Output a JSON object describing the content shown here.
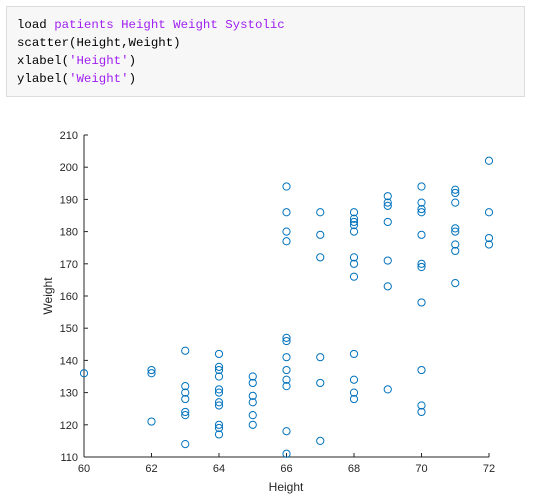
{
  "code": {
    "lines": [
      [
        {
          "t": "load ",
          "c": "plain"
        },
        {
          "t": "patients Height Weight Systolic",
          "c": "str"
        }
      ],
      [
        {
          "t": "scatter(Height,Weight)",
          "c": "plain"
        }
      ],
      [
        {
          "t": "xlabel(",
          "c": "plain"
        },
        {
          "t": "'Height'",
          "c": "str"
        },
        {
          "t": ")",
          "c": "plain"
        }
      ],
      [
        {
          "t": "ylabel(",
          "c": "plain"
        },
        {
          "t": "'Weight'",
          "c": "str"
        },
        {
          "t": ")",
          "c": "plain"
        }
      ]
    ]
  },
  "colors": {
    "marker": "#0072bd",
    "code_string": "#a020f0",
    "axis": "#262626"
  },
  "chart_data": {
    "type": "scatter",
    "xlabel": "Height",
    "ylabel": "Weight",
    "xlim": [
      60,
      72
    ],
    "ylim": [
      110,
      210
    ],
    "xticks": [
      60,
      62,
      64,
      66,
      68,
      70,
      72
    ],
    "yticks": [
      110,
      120,
      130,
      140,
      150,
      160,
      170,
      180,
      190,
      200,
      210
    ],
    "grid": false,
    "marker": "open-circle",
    "points": [
      [
        60,
        136
      ],
      [
        62,
        137
      ],
      [
        62,
        136
      ],
      [
        62,
        121
      ],
      [
        63,
        143
      ],
      [
        63,
        132
      ],
      [
        63,
        130
      ],
      [
        63,
        128
      ],
      [
        63,
        124
      ],
      [
        63,
        123
      ],
      [
        63,
        114
      ],
      [
        64,
        142
      ],
      [
        64,
        138
      ],
      [
        64,
        137
      ],
      [
        64,
        135
      ],
      [
        64,
        131
      ],
      [
        64,
        130
      ],
      [
        64,
        127
      ],
      [
        64,
        126
      ],
      [
        64,
        120
      ],
      [
        64,
        119
      ],
      [
        64,
        117
      ],
      [
        65,
        135
      ],
      [
        65,
        133
      ],
      [
        65,
        129
      ],
      [
        65,
        127
      ],
      [
        65,
        123
      ],
      [
        65,
        120
      ],
      [
        66,
        194
      ],
      [
        66,
        186
      ],
      [
        66,
        180
      ],
      [
        66,
        177
      ],
      [
        66,
        147
      ],
      [
        66,
        146
      ],
      [
        66,
        141
      ],
      [
        66,
        137
      ],
      [
        66,
        134
      ],
      [
        66,
        132
      ],
      [
        66,
        118
      ],
      [
        66,
        111
      ],
      [
        67,
        186
      ],
      [
        67,
        179
      ],
      [
        67,
        172
      ],
      [
        67,
        141
      ],
      [
        67,
        133
      ],
      [
        67,
        115
      ],
      [
        68,
        186
      ],
      [
        68,
        184
      ],
      [
        68,
        183
      ],
      [
        68,
        182
      ],
      [
        68,
        180
      ],
      [
        68,
        172
      ],
      [
        68,
        170
      ],
      [
        68,
        166
      ],
      [
        68,
        142
      ],
      [
        68,
        134
      ],
      [
        68,
        130
      ],
      [
        68,
        128
      ],
      [
        69,
        191
      ],
      [
        69,
        189
      ],
      [
        69,
        188
      ],
      [
        69,
        183
      ],
      [
        69,
        171
      ],
      [
        69,
        163
      ],
      [
        69,
        131
      ],
      [
        70,
        194
      ],
      [
        70,
        189
      ],
      [
        70,
        187
      ],
      [
        70,
        186
      ],
      [
        70,
        179
      ],
      [
        70,
        170
      ],
      [
        70,
        169
      ],
      [
        70,
        158
      ],
      [
        70,
        137
      ],
      [
        70,
        126
      ],
      [
        70,
        124
      ],
      [
        71,
        193
      ],
      [
        71,
        192
      ],
      [
        71,
        189
      ],
      [
        71,
        181
      ],
      [
        71,
        180
      ],
      [
        71,
        176
      ],
      [
        71,
        174
      ],
      [
        71,
        164
      ],
      [
        72,
        202
      ],
      [
        72,
        186
      ],
      [
        72,
        178
      ],
      [
        72,
        176
      ]
    ]
  }
}
